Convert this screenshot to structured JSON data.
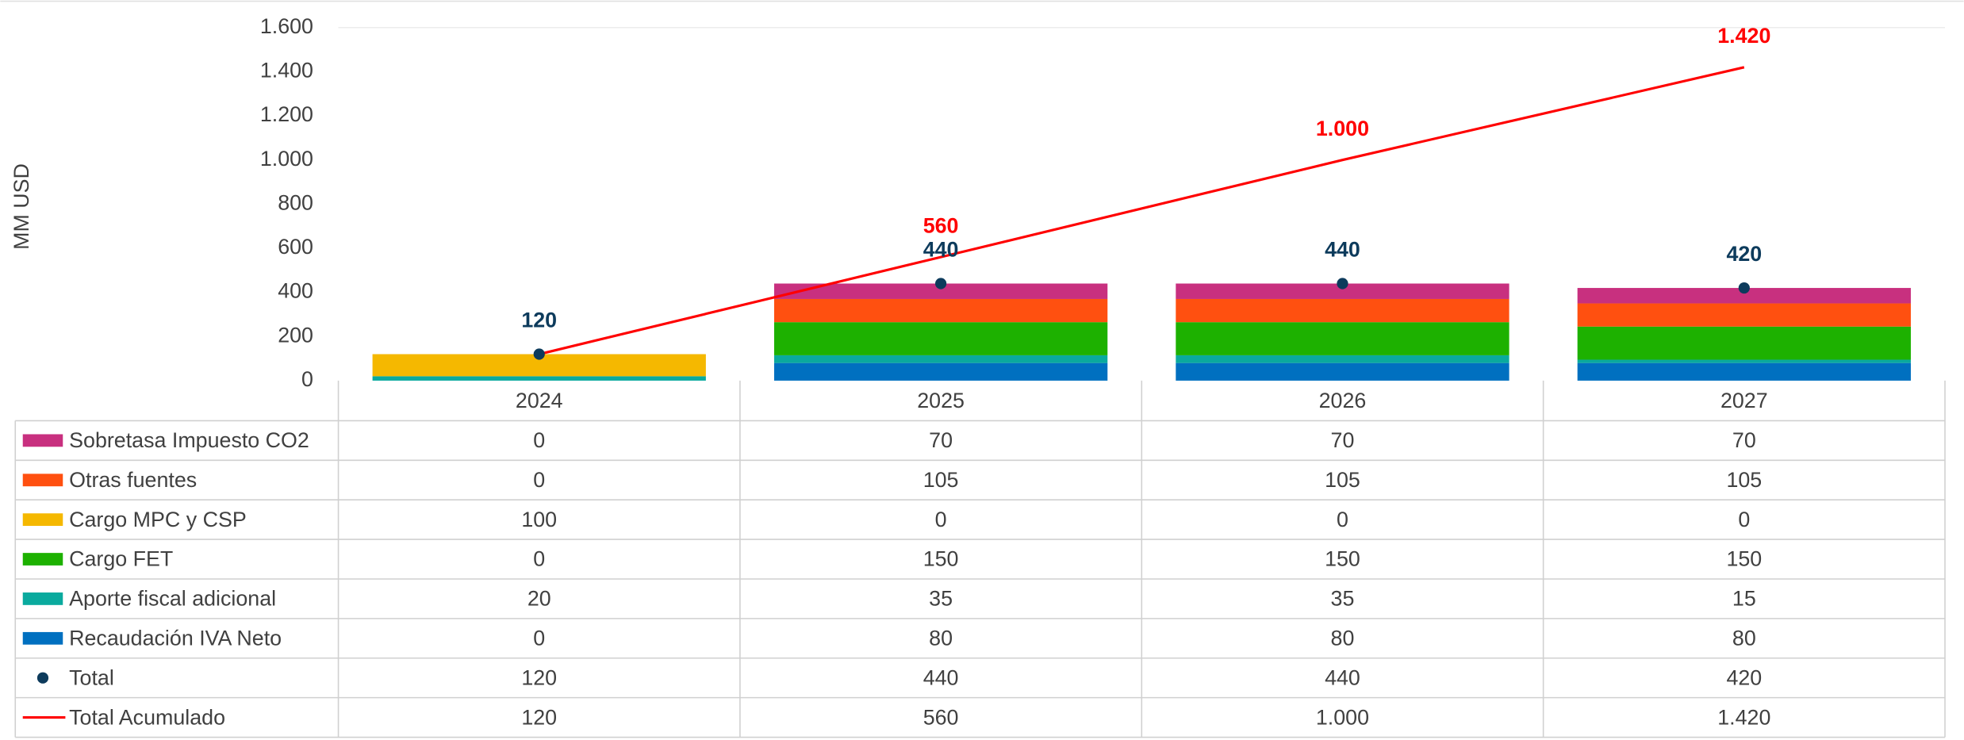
{
  "chart_data": {
    "type": "bar",
    "stacked": true,
    "ylabel": "MM USD",
    "categories": [
      "2024",
      "2025",
      "2026",
      "2027"
    ],
    "ylim": [
      0,
      1600
    ],
    "yticks": [
      0,
      200,
      400,
      600,
      800,
      {
        "value": 1000,
        "label": "1.000"
      },
      {
        "value": 1200,
        "label": "1.200"
      },
      {
        "value": 1400,
        "label": "1.400"
      },
      {
        "value": 1600,
        "label": "1.600"
      }
    ],
    "grid": false,
    "series": [
      {
        "name": "Sobretasa Impuesto CO2",
        "type": "bar",
        "color": "#c8307f",
        "values": [
          0,
          70,
          70,
          70
        ]
      },
      {
        "name": "Otras fuentes",
        "type": "bar",
        "color": "#ff5010",
        "values": [
          0,
          105,
          105,
          105
        ]
      },
      {
        "name": "Cargo MPC y CSP",
        "type": "bar",
        "color": "#f5b800",
        "values": [
          100,
          0,
          0,
          0
        ]
      },
      {
        "name": "Cargo FET",
        "type": "bar",
        "color": "#1db100",
        "values": [
          0,
          150,
          150,
          150
        ]
      },
      {
        "name": "Aporte fiscal adicional",
        "type": "bar",
        "color": "#0aaa9e",
        "values": [
          20,
          35,
          35,
          15
        ]
      },
      {
        "name": "Recaudación IVA Neto",
        "type": "bar",
        "color": "#0070c0",
        "values": [
          0,
          80,
          80,
          80
        ]
      },
      {
        "name": "Total",
        "type": "scatter",
        "color": "#0d3b5c",
        "values": [
          120,
          440,
          440,
          420
        ]
      },
      {
        "name": "Total Acumulado",
        "type": "line",
        "color": "#ff0000",
        "values": [
          120,
          560,
          1000,
          1420
        ],
        "value_labels": [
          "120",
          "560",
          "1.000",
          "1.420"
        ]
      }
    ]
  }
}
